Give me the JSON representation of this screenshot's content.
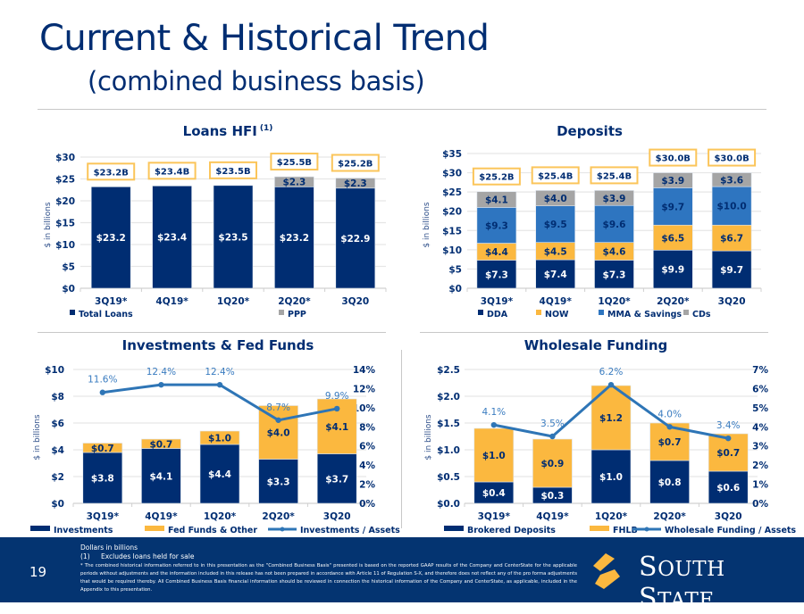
{
  "header": {
    "title": "Current & Historical Trend",
    "subtitle": "(combined business basis)"
  },
  "footer": {
    "page_number": "19",
    "note_units": "Dollars in billions",
    "note_1_marker": "(1)",
    "note_1_text": "Excludes loans held for sale",
    "note_star": "*   The combined historical information referred to in this presentation as the \"Combined Business Basis\" presented is based on the reported GAAP results of the Company and CenterState for the applicable periods without adjustments and the information included in this release has not been prepared in accordance with Article 11 of Regulation S-X, and therefore does not reflect any of the pro forma adjustments that would be required thereby.  All Combined Business Basis financial information should be reviewed in connection the historical information of the Company and CenterState, as applicable, included in the Appendix to this presentation.",
    "logo_text_big1": "S",
    "logo_text_small1": "OUTH ",
    "logo_text_big2": "S",
    "logo_text_small2": "TATE",
    "logo_alt": "South State"
  },
  "colors": {
    "navy": "#002d72",
    "gold": "#fbb83f",
    "gray": "#a5a5a5",
    "blue": "#2e75c0",
    "line": "#2e75b6",
    "label_blue": "#3a7cc0",
    "footer_bg": "#043471"
  },
  "chart_data": [
    {
      "id": "loans",
      "type": "bar",
      "stacked": true,
      "title": "Loans HFI",
      "title_sup": "(1)",
      "ylabel": "$ in billions",
      "categories": [
        "3Q19*",
        "4Q19*",
        "1Q20*",
        "2Q20*",
        "3Q20"
      ],
      "ylim": [
        0,
        30
      ],
      "yticks": [
        0,
        5,
        10,
        15,
        20,
        25,
        30
      ],
      "ytick_labels": [
        "$0",
        "$5",
        "$10",
        "$15",
        "$20",
        "$25",
        "$30"
      ],
      "series": [
        {
          "name": "Total Loans",
          "color": "#002d72",
          "values": [
            23.2,
            23.4,
            23.5,
            23.2,
            22.9
          ],
          "labels": [
            "$23.2",
            "$23.4",
            "$23.5",
            "$23.2",
            "$22.9"
          ],
          "label_color": "#ffffff"
        },
        {
          "name": "PPP",
          "color": "#a5a5a5",
          "values": [
            0,
            0,
            0,
            2.3,
            2.3
          ],
          "labels": [
            "",
            "",
            "",
            "$2.3",
            "$2.3"
          ],
          "label_color": "#002d72"
        }
      ],
      "totals": [
        "$23.2B",
        "$23.4B",
        "$23.5B",
        "$25.5B",
        "$25.2B"
      ],
      "legend": "bottom",
      "grid": true
    },
    {
      "id": "deposits",
      "type": "bar",
      "stacked": true,
      "title": "Deposits",
      "ylabel": "$ in billions",
      "categories": [
        "3Q19*",
        "4Q19*",
        "1Q20*",
        "2Q20*",
        "3Q20"
      ],
      "ylim": [
        0,
        35
      ],
      "yticks": [
        0,
        5,
        10,
        15,
        20,
        25,
        30,
        35
      ],
      "ytick_labels": [
        "$0",
        "$5",
        "$10",
        "$15",
        "$20",
        "$25",
        "$30",
        "$35"
      ],
      "series": [
        {
          "name": "DDA",
          "color": "#002d72",
          "values": [
            7.3,
            7.4,
            7.3,
            9.9,
            9.7
          ],
          "labels": [
            "$7.3",
            "$7.4",
            "$7.3",
            "$9.9",
            "$9.7"
          ],
          "label_color": "#ffffff"
        },
        {
          "name": "NOW",
          "color": "#fbb83f",
          "values": [
            4.4,
            4.5,
            4.6,
            6.5,
            6.7
          ],
          "labels": [
            "$4.4",
            "$4.5",
            "$4.6",
            "$6.5",
            "$6.7"
          ],
          "label_color": "#002d72"
        },
        {
          "name": "MMA & Savings",
          "color": "#2e75c0",
          "values": [
            9.3,
            9.5,
            9.6,
            9.7,
            10.0
          ],
          "labels": [
            "$9.3",
            "$9.5",
            "$9.6",
            "$9.7",
            "$10.0"
          ],
          "label_color": "#002d72"
        },
        {
          "name": "CDs",
          "color": "#a5a5a5",
          "values": [
            4.1,
            4.0,
            3.9,
            3.9,
            3.6
          ],
          "labels": [
            "$4.1",
            "$4.0",
            "$3.9",
            "$3.9",
            "$3.6"
          ],
          "label_color": "#002d72"
        }
      ],
      "totals": [
        "$25.2B",
        "$25.4B",
        "$25.4B",
        "$30.0B",
        "$30.0B"
      ],
      "legend": "bottom",
      "grid": true
    },
    {
      "id": "investments",
      "type": "bar",
      "stacked": true,
      "title": "Investments & Fed Funds",
      "ylabel": "$ in billions",
      "categories": [
        "3Q19*",
        "4Q19*",
        "1Q20*",
        "2Q20*",
        "3Q20"
      ],
      "ylim": [
        0,
        10
      ],
      "yticks": [
        0,
        2,
        4,
        6,
        8,
        10
      ],
      "ytick_labels": [
        "$0",
        "$2",
        "$4",
        "$6",
        "$8",
        "$10"
      ],
      "y2lim": [
        0,
        14
      ],
      "y2ticks": [
        0,
        2,
        4,
        6,
        8,
        10,
        12,
        14
      ],
      "y2tick_labels": [
        "0%",
        "2%",
        "4%",
        "6%",
        "8%",
        "10%",
        "12%",
        "14%"
      ],
      "series": [
        {
          "name": "Investments",
          "color": "#002d72",
          "values": [
            3.8,
            4.1,
            4.4,
            3.3,
            3.7
          ],
          "labels": [
            "$3.8",
            "$4.1",
            "$4.4",
            "$3.3",
            "$3.7"
          ],
          "label_color": "#ffffff"
        },
        {
          "name": "Fed Funds & Other",
          "color": "#fbb83f",
          "values": [
            0.7,
            0.7,
            1.0,
            4.0,
            4.1
          ],
          "labels": [
            "$0.7",
            "$0.7",
            "$1.0",
            "$4.0",
            "$4.1"
          ],
          "label_color": "#002d72"
        }
      ],
      "line_series": {
        "name": "Investments / Assets",
        "color": "#2e75b6",
        "axis": "right",
        "values": [
          11.6,
          12.4,
          12.4,
          8.7,
          9.9
        ],
        "labels": [
          "11.6%",
          "12.4%",
          "12.4%",
          "8.7%",
          "9.9%"
        ]
      },
      "legend": "bottom",
      "grid": true
    },
    {
      "id": "wholesale",
      "type": "bar",
      "stacked": true,
      "title": "Wholesale Funding",
      "ylabel": "$ in billions",
      "categories": [
        "3Q19*",
        "4Q19*",
        "1Q20*",
        "2Q20*",
        "3Q20"
      ],
      "ylim": [
        0,
        2.5
      ],
      "yticks": [
        0,
        0.5,
        1.0,
        1.5,
        2.0,
        2.5
      ],
      "ytick_labels": [
        "$0.0",
        "$0.5",
        "$1.0",
        "$1.5",
        "$2.0",
        "$2.5"
      ],
      "y2lim": [
        0,
        7
      ],
      "y2ticks": [
        0,
        1,
        2,
        3,
        4,
        5,
        6,
        7
      ],
      "y2tick_labels": [
        "0%",
        "1%",
        "2%",
        "3%",
        "4%",
        "5%",
        "6%",
        "7%"
      ],
      "series": [
        {
          "name": "Brokered Deposits",
          "color": "#002d72",
          "values": [
            0.4,
            0.3,
            1.0,
            0.8,
            0.6
          ],
          "labels": [
            "$0.4",
            "$0.3",
            "$1.0",
            "$0.8",
            "$0.6"
          ],
          "label_color": "#ffffff"
        },
        {
          "name": "FHLB",
          "color": "#fbb83f",
          "values": [
            1.0,
            0.9,
            1.2,
            0.7,
            0.7
          ],
          "labels": [
            "$1.0",
            "$0.9",
            "$1.2",
            "$0.7",
            "$0.7"
          ],
          "label_color": "#002d72"
        }
      ],
      "line_series": {
        "name": "Wholesale Funding / Assets",
        "color": "#2e75b6",
        "axis": "right",
        "values": [
          4.1,
          3.5,
          6.2,
          4.0,
          3.4
        ],
        "labels": [
          "4.1%",
          "3.5%",
          "6.2%",
          "4.0%",
          "3.4%"
        ]
      },
      "legend": "bottom",
      "grid": true
    }
  ]
}
